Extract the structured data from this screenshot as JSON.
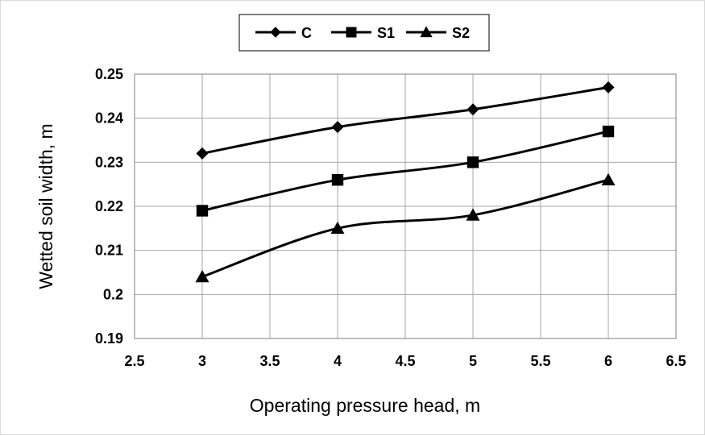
{
  "chart_data": {
    "type": "line",
    "title": "",
    "xlabel": "Operating pressure head, m",
    "ylabel": "Wetted soil width, m",
    "xlim": [
      2.5,
      6.5
    ],
    "ylim": [
      0.19,
      0.25
    ],
    "x_ticks": [
      "2.5",
      "3",
      "3.5",
      "4",
      "4.5",
      "5",
      "5.5",
      "6",
      "6.5"
    ],
    "y_ticks": [
      "0.19",
      "0.2",
      "0.21",
      "0.22",
      "0.23",
      "0.24",
      "0.25"
    ],
    "grid": true,
    "legend_position": "top-center",
    "x": [
      3,
      4,
      5,
      6
    ],
    "series": [
      {
        "name": "C",
        "marker": "diamond",
        "values": [
          0.232,
          0.238,
          0.242,
          0.247
        ]
      },
      {
        "name": "S1",
        "marker": "square",
        "values": [
          0.219,
          0.226,
          0.23,
          0.237
        ]
      },
      {
        "name": "S2",
        "marker": "triangle",
        "values": [
          0.204,
          0.215,
          0.218,
          0.226
        ]
      }
    ],
    "colors": {
      "line": "#000000",
      "grid": "#a6a6a6",
      "background": "#ffffff"
    }
  }
}
